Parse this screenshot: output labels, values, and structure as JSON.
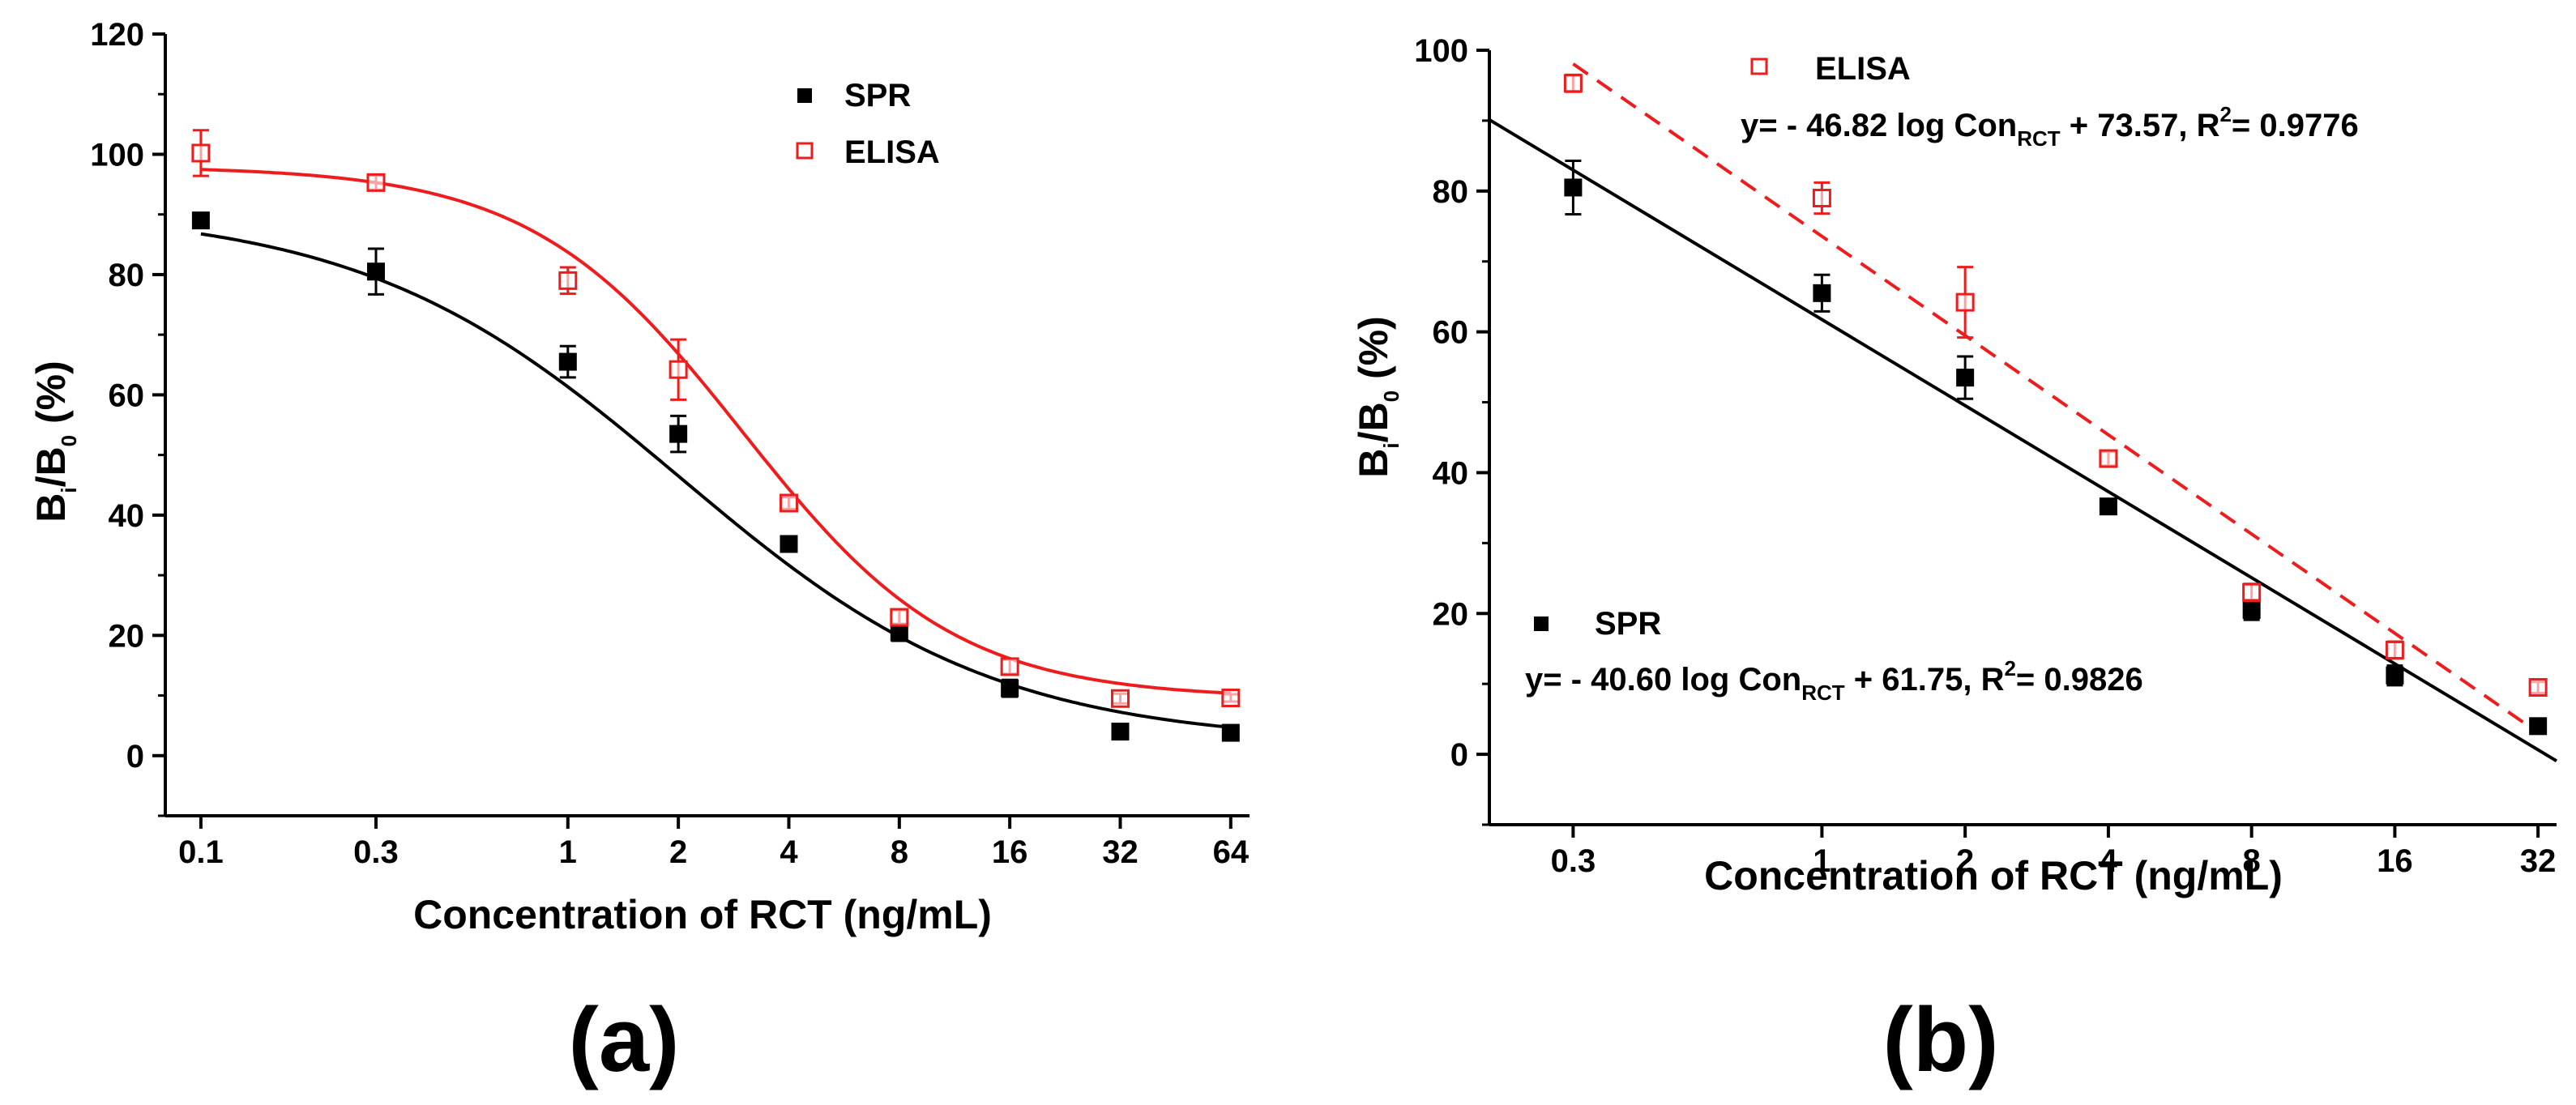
{
  "chart_data": [
    {
      "type": "scatter",
      "panel_label": "(a)",
      "title": "",
      "xlabel": "Concentration of RCT (ng/mL)",
      "ylabel": {
        "base": "B",
        "sub1": "i",
        "mid": "/B",
        "sub2": "0",
        "tail": " (%)"
      },
      "xscale": "log",
      "xlim": [
        0.08,
        72
      ],
      "ylim": [
        -10,
        120
      ],
      "x_ticks": [
        0.1,
        0.3,
        1,
        2,
        4,
        8,
        16,
        32,
        64
      ],
      "x_tick_labels": [
        "0.1",
        "0.3",
        "1",
        "2",
        "4",
        "8",
        "16",
        "32",
        "64"
      ],
      "y_ticks": [
        0,
        20,
        40,
        60,
        80,
        100,
        120
      ],
      "y_tick_labels": [
        "0",
        "20",
        "40",
        "60",
        "80",
        "100",
        "120"
      ],
      "legend_position": "top-right",
      "series": [
        {
          "name": "SPR",
          "marker": "filled-square",
          "color": "#000000",
          "x": [
            0.1,
            0.3,
            1,
            2,
            4,
            8,
            16,
            32,
            64
          ],
          "values": [
            89,
            80.5,
            65.5,
            53.5,
            35.2,
            20.5,
            11.2,
            4,
            3.8
          ],
          "errors": [
            1.0,
            3.8,
            2.6,
            3.0,
            0.8,
            1.4,
            1.4,
            0.8,
            1.0
          ],
          "fit": {
            "top": 91,
            "bottom": 2,
            "ic50": 2.0,
            "hill": 1.0
          }
        },
        {
          "name": "ELISA",
          "marker": "open-square",
          "color": "#ee1c1c",
          "x": [
            0.1,
            0.3,
            1,
            2,
            4,
            8,
            16,
            32,
            64
          ],
          "values": [
            100.2,
            95.3,
            79,
            64.2,
            42,
            23,
            14.8,
            9.5,
            9.6
          ],
          "errors": [
            3.8,
            1.2,
            2.2,
            5.0,
            1.0,
            1.2,
            1.2,
            0.8,
            0.6
          ],
          "fit": {
            "top": 98,
            "bottom": 9.5,
            "ic50": 3.0,
            "hill": 1.5
          }
        }
      ]
    },
    {
      "type": "scatter",
      "panel_label": "(b)",
      "title": "",
      "xlabel": "Concentration of RCT (ng/mL)",
      "ylabel": {
        "base": "B",
        "sub1": "i",
        "mid": "/B",
        "sub2": "0",
        "tail": " (%)"
      },
      "xscale": "log",
      "xlim": [
        0.2,
        35
      ],
      "ylim": [
        -10,
        100
      ],
      "x_ticks": [
        0.3,
        1,
        2,
        4,
        8,
        16,
        32
      ],
      "x_tick_labels": [
        "0.3",
        "1",
        "2",
        "4",
        "8",
        "16",
        "32"
      ],
      "y_ticks": [
        0,
        20,
        40,
        60,
        80,
        100
      ],
      "y_tick_labels": [
        "0",
        "20",
        "40",
        "60",
        "80",
        "100"
      ],
      "series": [
        {
          "name": "ELISA",
          "marker": "open-square",
          "color": "#ee1c1c",
          "line": "dashed",
          "x": [
            0.3,
            1,
            2,
            4,
            8,
            16,
            32
          ],
          "values": [
            95.3,
            79,
            64.2,
            42,
            23,
            14.8,
            9.5
          ],
          "errors": [
            1.2,
            2.2,
            5.0,
            1.0,
            1.2,
            1.2,
            0.8
          ],
          "fit": {
            "slope": -46.82,
            "intercept": 73.57,
            "r2": 0.9776
          },
          "equation": {
            "lead": "y= - 46.82 log Con",
            "sub": "RCT",
            "mid": " + 73.57, R",
            "sup": "2",
            "tail": "= 0.9776"
          }
        },
        {
          "name": "SPR",
          "marker": "filled-square",
          "color": "#000000",
          "line": "solid",
          "x": [
            0.3,
            1,
            2,
            4,
            8,
            16,
            32
          ],
          "values": [
            80.5,
            65.5,
            53.5,
            35.2,
            20.5,
            11.2,
            4
          ],
          "errors": [
            3.8,
            2.6,
            3.0,
            0.8,
            1.4,
            1.4,
            0.8
          ],
          "fit": {
            "slope": -40.6,
            "intercept": 61.75,
            "r2": 0.9826
          },
          "equation": {
            "lead": "y= - 40.60 log Con",
            "sub": "RCT",
            "mid": " + 61.75, R",
            "sup": "2",
            "tail": "= 0.9826"
          }
        }
      ]
    }
  ]
}
